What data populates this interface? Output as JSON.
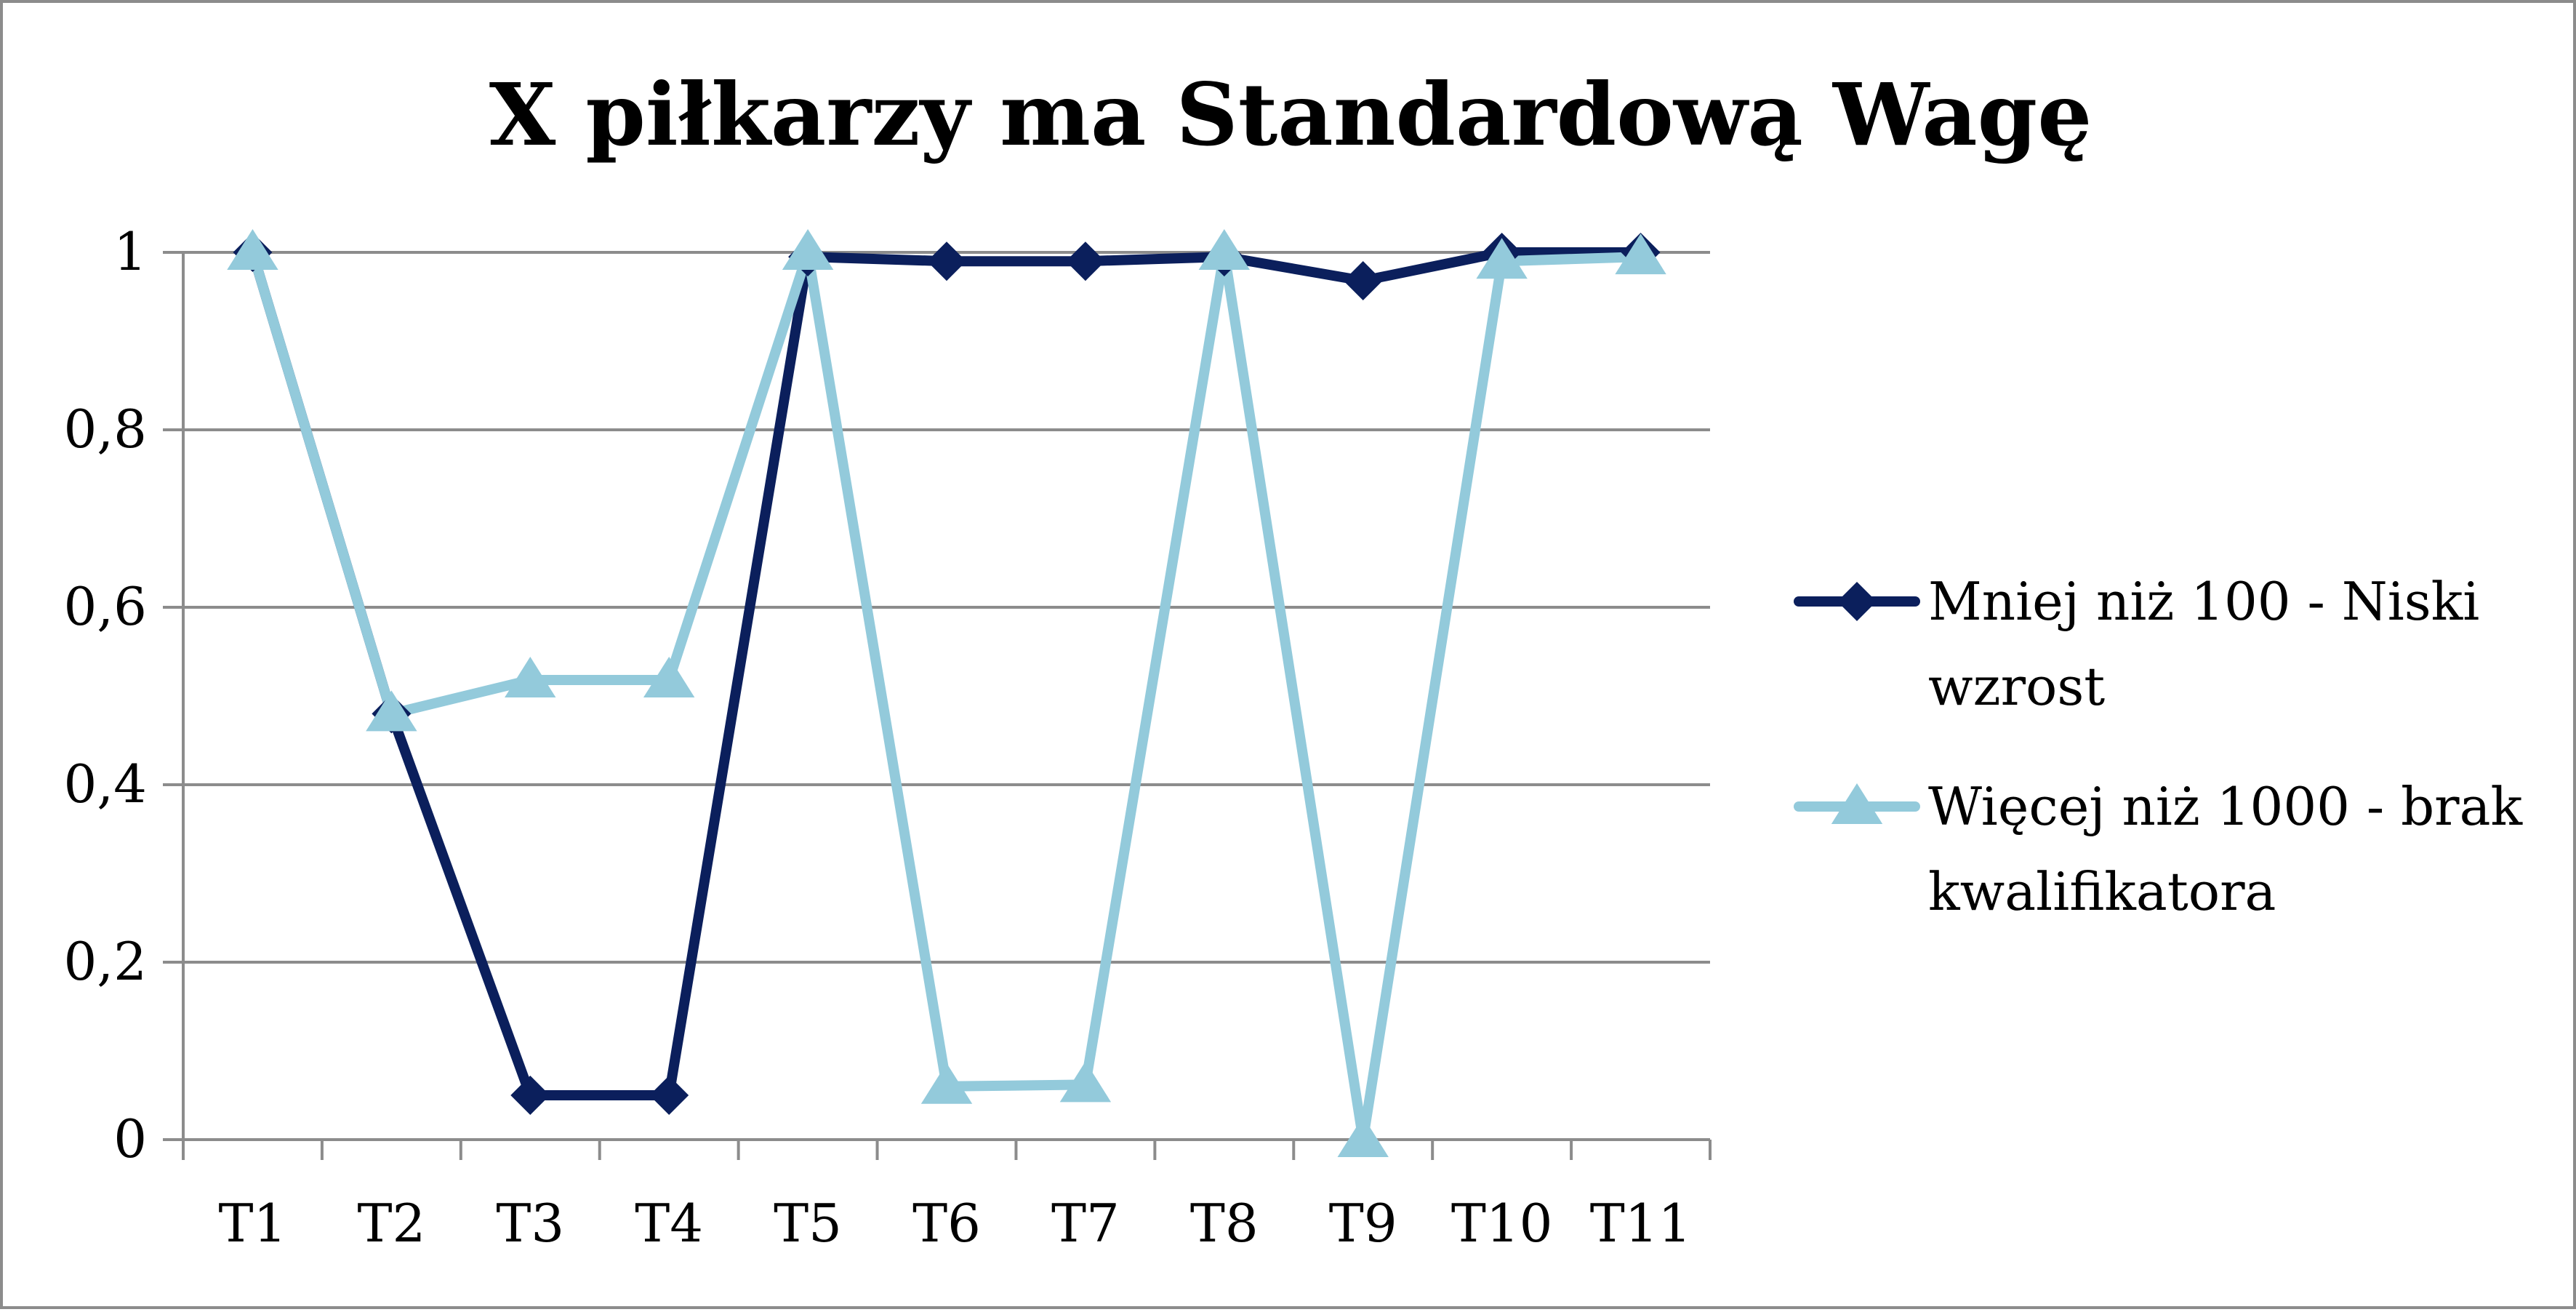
{
  "chart_data": {
    "type": "line",
    "title": "X piłkarzy ma Standardową Wagę",
    "xlabel": "",
    "ylabel": "",
    "categories": [
      "T1",
      "T2",
      "T3",
      "T4",
      "T5",
      "T6",
      "T7",
      "T8",
      "T9",
      "T10",
      "T11"
    ],
    "y_ticks": [
      "0",
      "0,2",
      "0,4",
      "0,6",
      "0,8",
      "1"
    ],
    "ylim": [
      0,
      1
    ],
    "grid": true,
    "legend_position": "right",
    "series": [
      {
        "name": "Mniej niż 100 - Niski wzrost",
        "legend_lines": [
          "Mniej niż 100 - Niski",
          "wzrost"
        ],
        "color": "#0b1f5c",
        "marker": "diamond",
        "values": [
          1,
          0.48,
          0.05,
          0.05,
          0.995,
          0.99,
          0.99,
          0.995,
          0.968,
          1,
          1
        ]
      },
      {
        "name": "Więcej niż 1000 - brak kwalifikatora",
        "legend_lines": [
          "Więcej niż 1000 - brak",
          "kwalifikatora"
        ],
        "color": "#93cadb",
        "marker": "triangle",
        "values": [
          1,
          0.48,
          0.518,
          0.518,
          1,
          0.06,
          0.062,
          1,
          0,
          0.99,
          0.995
        ]
      }
    ],
    "colors": {
      "grid": "#8c8c8c",
      "axis": "#8c8c8c",
      "frame": "#8c8c8c"
    }
  }
}
